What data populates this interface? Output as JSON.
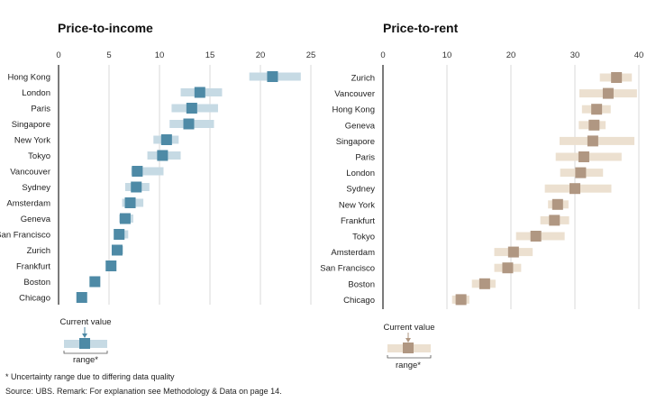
{
  "chart_data": [
    {
      "type": "range-dot",
      "title": "Price-to-income",
      "xlim": [
        0,
        25
      ],
      "xticks": [
        0,
        5,
        10,
        15,
        20,
        25
      ],
      "grid": true,
      "categories": [
        "Hong Kong",
        "London",
        "Paris",
        "Singapore",
        "New York",
        "Tokyo",
        "Vancouver",
        "Sydney",
        "Amsterdam",
        "Geneva",
        "San Francisco",
        "Zurich",
        "Frankfurt",
        "Boston",
        "Chicago"
      ],
      "values": [
        21.2,
        14.0,
        13.2,
        12.9,
        10.7,
        10.3,
        7.8,
        7.7,
        7.1,
        6.6,
        6.0,
        5.8,
        5.2,
        3.6,
        2.3
      ],
      "range_low": [
        18.9,
        12.1,
        11.2,
        11.0,
        9.4,
        8.8,
        7.2,
        6.6,
        6.3,
        6.0,
        5.5,
        5.4,
        5.2,
        3.6,
        2.3
      ],
      "range_high": [
        24.0,
        16.2,
        15.8,
        15.4,
        11.9,
        12.1,
        10.4,
        9.0,
        8.4,
        7.4,
        6.9,
        6.4,
        5.2,
        3.6,
        2.3
      ],
      "colors": {
        "marker": "#4e8aa6",
        "range": "#c6dae4"
      }
    },
    {
      "type": "range-dot",
      "title": "Price-to-rent",
      "xlim": [
        0,
        40
      ],
      "xticks": [
        0,
        10,
        20,
        30,
        40
      ],
      "grid": true,
      "categories": [
        "Zurich",
        "Vancouver",
        "Hong Kong",
        "Geneva",
        "Singapore",
        "Paris",
        "London",
        "Sydney",
        "New York",
        "Frankfurt",
        "Tokyo",
        "Amsterdam",
        "San Francisco",
        "Boston",
        "Chicago"
      ],
      "values": [
        36.5,
        35.2,
        33.4,
        33.0,
        32.8,
        31.4,
        30.9,
        30.0,
        27.3,
        26.8,
        23.9,
        20.4,
        19.5,
        15.9,
        12.2
      ],
      "range_low": [
        33.9,
        30.7,
        31.1,
        30.6,
        27.6,
        27.0,
        27.7,
        25.3,
        25.8,
        24.6,
        20.8,
        17.4,
        17.4,
        13.9,
        10.8
      ],
      "range_high": [
        38.9,
        39.7,
        35.6,
        34.8,
        39.3,
        37.3,
        34.4,
        35.7,
        29.0,
        29.1,
        28.4,
        23.4,
        21.6,
        17.6,
        13.5
      ],
      "colors": {
        "marker": "#b09782",
        "range": "#ece0d0"
      }
    }
  ],
  "legends": [
    {
      "current_label": "Current value",
      "range_label": "range*"
    },
    {
      "current_label": "Current value",
      "range_label": "range*"
    }
  ],
  "footnotes": {
    "note": "* Uncertainty range due to differing data quality",
    "source": "Source: UBS. Remark: For explanation see Methodology & Data on page 14."
  }
}
